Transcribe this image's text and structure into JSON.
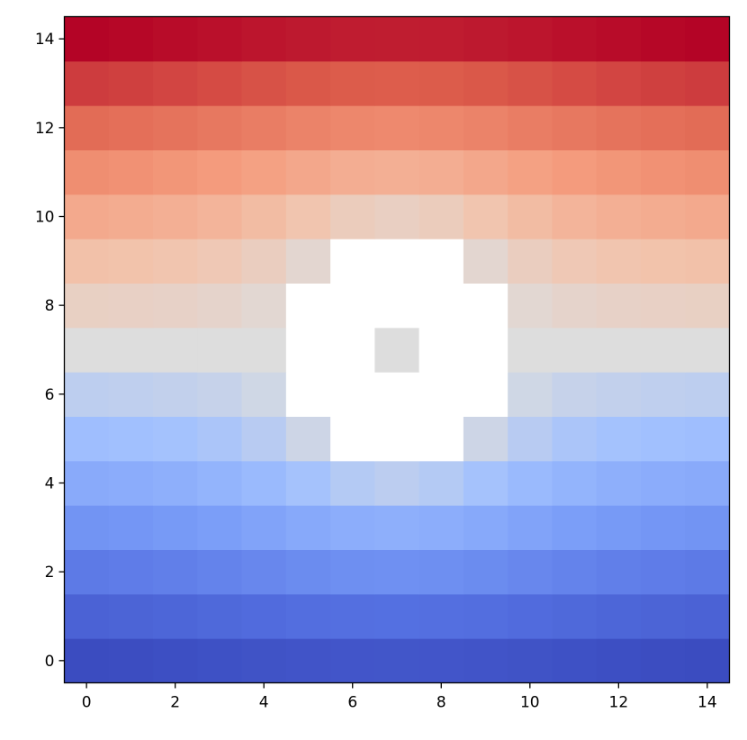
{
  "chart_data": {
    "type": "heatmap",
    "title": "",
    "xlabel": "",
    "ylabel": "",
    "colormap": "coolwarm",
    "vmin": -6.55,
    "vmax": 6.55,
    "missing_color": "#ffffff",
    "origin": "lower",
    "xlim": [
      -0.5,
      14.5
    ],
    "ylim": [
      -0.5,
      14.5
    ],
    "xticks": [
      0,
      2,
      4,
      6,
      8,
      10,
      12,
      14
    ],
    "yticks": [
      0,
      2,
      4,
      6,
      8,
      10,
      12,
      14
    ],
    "grid": false,
    "rows_by_y": [
      [
        -6.55,
        -6.49,
        -6.41,
        -6.33,
        -6.25,
        -6.18,
        -6.13,
        -6.11,
        -6.13,
        -6.18,
        -6.25,
        -6.33,
        -6.41,
        -6.49,
        -6.55
      ],
      [
        -5.56,
        -5.48,
        -5.39,
        -5.28,
        -5.17,
        -5.06,
        -4.99,
        -4.96,
        -4.99,
        -5.06,
        -5.17,
        -5.28,
        -5.39,
        -5.48,
        -5.56
      ],
      [
        -4.58,
        -4.49,
        -4.38,
        -4.24,
        -4.08,
        -3.92,
        -3.8,
        -3.75,
        -3.8,
        -3.92,
        -4.08,
        -4.24,
        -4.38,
        -4.49,
        -4.58
      ],
      [
        -3.62,
        -3.52,
        -3.39,
        -3.22,
        -3.0,
        -2.75,
        -2.53,
        -2.44,
        -2.53,
        -2.75,
        -3.0,
        -3.22,
        -3.39,
        -3.52,
        -3.62
      ],
      [
        -2.68,
        -2.58,
        -2.45,
        -2.25,
        -1.96,
        -1.56,
        -1.13,
        -0.92,
        -1.13,
        -1.56,
        -1.96,
        -2.25,
        -2.45,
        -2.58,
        -2.68
      ],
      [
        -1.76,
        -1.69,
        -1.57,
        -1.38,
        -1.04,
        -0.44,
        null,
        null,
        null,
        -0.44,
        -1.04,
        -1.38,
        -1.57,
        -1.69,
        -1.76
      ],
      [
        -0.88,
        -0.83,
        -0.76,
        -0.63,
        -0.38,
        null,
        null,
        null,
        null,
        null,
        -0.38,
        -0.63,
        -0.76,
        -0.83,
        -0.88
      ],
      [
        0,
        0,
        0,
        0,
        0,
        null,
        null,
        0,
        null,
        null,
        0,
        0,
        0,
        0,
        0
      ],
      [
        0.88,
        0.83,
        0.76,
        0.63,
        0.38,
        null,
        null,
        null,
        null,
        null,
        0.38,
        0.63,
        0.76,
        0.83,
        0.88
      ],
      [
        1.76,
        1.69,
        1.57,
        1.38,
        1.04,
        0.44,
        null,
        null,
        null,
        0.44,
        1.04,
        1.38,
        1.57,
        1.69,
        1.76
      ],
      [
        2.68,
        2.58,
        2.45,
        2.25,
        1.96,
        1.56,
        1.13,
        0.92,
        1.13,
        1.56,
        1.96,
        2.25,
        2.45,
        2.58,
        2.68
      ],
      [
        3.62,
        3.52,
        3.39,
        3.22,
        3.0,
        2.75,
        2.53,
        2.44,
        2.53,
        2.75,
        3.0,
        3.22,
        3.39,
        3.52,
        3.62
      ],
      [
        4.58,
        4.49,
        4.38,
        4.24,
        4.08,
        3.92,
        3.8,
        3.75,
        3.8,
        3.92,
        4.08,
        4.24,
        4.38,
        4.49,
        4.58
      ],
      [
        5.56,
        5.48,
        5.39,
        5.28,
        5.17,
        5.06,
        4.99,
        4.96,
        4.99,
        5.06,
        5.17,
        5.28,
        5.39,
        5.48,
        5.56
      ],
      [
        6.55,
        6.49,
        6.41,
        6.33,
        6.25,
        6.18,
        6.13,
        6.11,
        6.13,
        6.18,
        6.25,
        6.33,
        6.41,
        6.49,
        6.55
      ]
    ]
  }
}
